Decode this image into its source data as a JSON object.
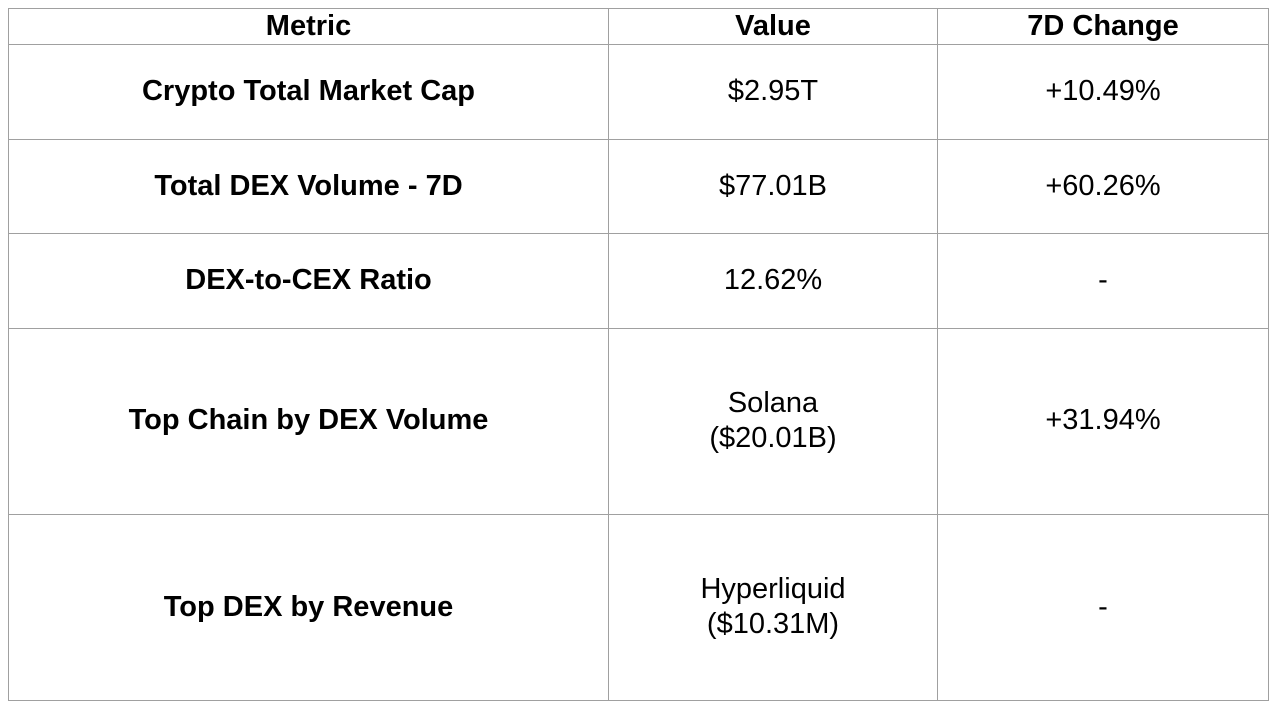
{
  "table": {
    "columns": [
      {
        "key": "metric",
        "label": "Metric"
      },
      {
        "key": "value",
        "label": "Value"
      },
      {
        "key": "change",
        "label": "7D Change"
      }
    ],
    "rows": [
      {
        "metric": "Crypto Total Market Cap",
        "value": "$2.95T",
        "change": "+10.49%"
      },
      {
        "metric": "Total DEX Volume - 7D",
        "value": "$77.01B",
        "change": "+60.26%"
      },
      {
        "metric": "DEX-to-CEX Ratio",
        "value": "12.62%",
        "change": "-"
      },
      {
        "metric": "Top Chain by DEX Volume",
        "value": "Solana\n($20.01B)",
        "change": "+31.94%"
      },
      {
        "metric": "Top DEX by Revenue",
        "value": "Hyperliquid\n($10.31M)",
        "change": "-"
      }
    ],
    "colors": {
      "border": "#a0a0a0",
      "text": "#000000",
      "background": "#ffffff"
    }
  },
  "chart_data": {
    "type": "table",
    "title": "",
    "columns": [
      "Metric",
      "Value",
      "7D Change"
    ],
    "rows": [
      [
        "Crypto Total Market Cap",
        "$2.95T",
        "+10.49%"
      ],
      [
        "Total DEX Volume - 7D",
        "$77.01B",
        "+60.26%"
      ],
      [
        "DEX-to-CEX Ratio",
        "12.62%",
        "-"
      ],
      [
        "Top Chain by DEX Volume",
        "Solana ($20.01B)",
        "+31.94%"
      ],
      [
        "Top DEX by Revenue",
        "Hyperliquid ($10.31M)",
        "-"
      ]
    ],
    "numeric_values": {
      "crypto_total_market_cap_usd_trillions": 2.95,
      "crypto_total_market_cap_7d_change_pct": 10.49,
      "total_dex_volume_7d_usd_billions": 77.01,
      "total_dex_volume_7d_change_pct": 60.26,
      "dex_to_cex_ratio_pct": 12.62,
      "top_chain_dex_volume_usd_billions": 20.01,
      "top_chain_7d_change_pct": 31.94,
      "top_dex_revenue_usd_millions": 10.31
    }
  }
}
